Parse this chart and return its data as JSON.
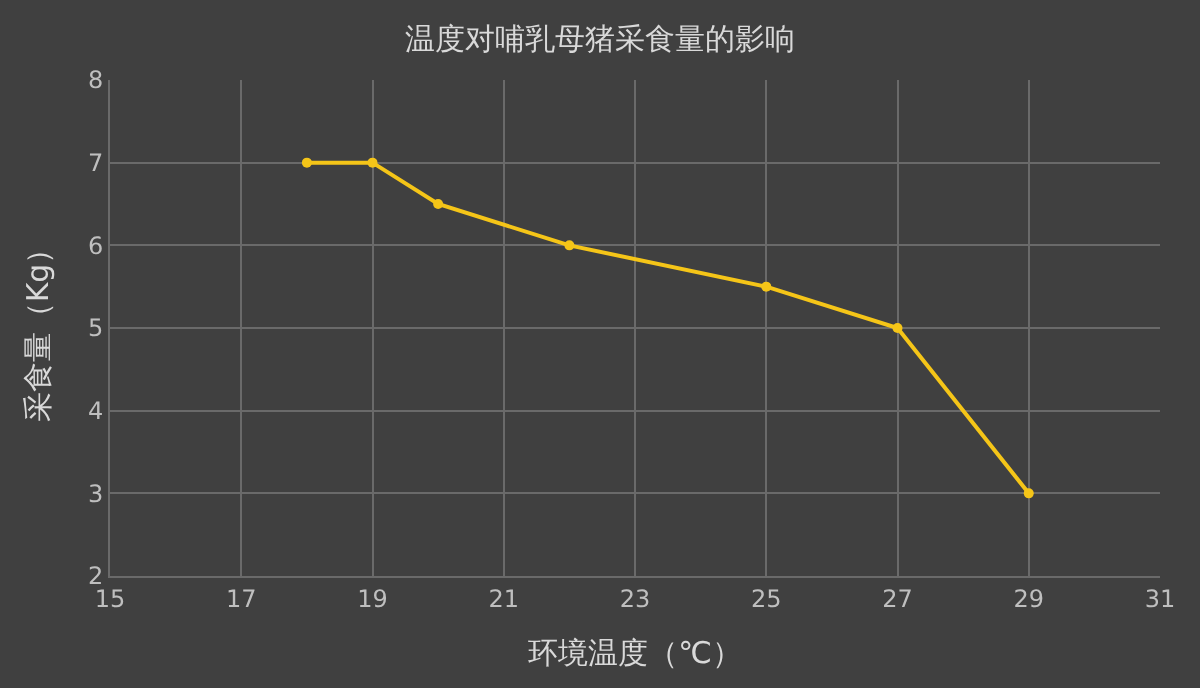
{
  "chart_data": {
    "type": "line",
    "title": "温度对哺乳母猪采食量的影响",
    "xlabel": "环境温度（℃）",
    "ylabel": "采食量（Kg）",
    "x": [
      18,
      19,
      20,
      22,
      25,
      27,
      29
    ],
    "series": [
      {
        "color": "#f5c518",
        "values": [
          7,
          7,
          6.5,
          6,
          5.5,
          5,
          3
        ]
      }
    ],
    "xlim": [
      15,
      31
    ],
    "xticks": [
      15,
      17,
      19,
      21,
      23,
      25,
      27,
      29,
      31
    ],
    "ylim": [
      2,
      8
    ],
    "yticks": [
      2,
      3,
      4,
      5,
      6,
      7,
      8
    ],
    "grid": true,
    "marker": "circle",
    "line_style": "solid"
  }
}
